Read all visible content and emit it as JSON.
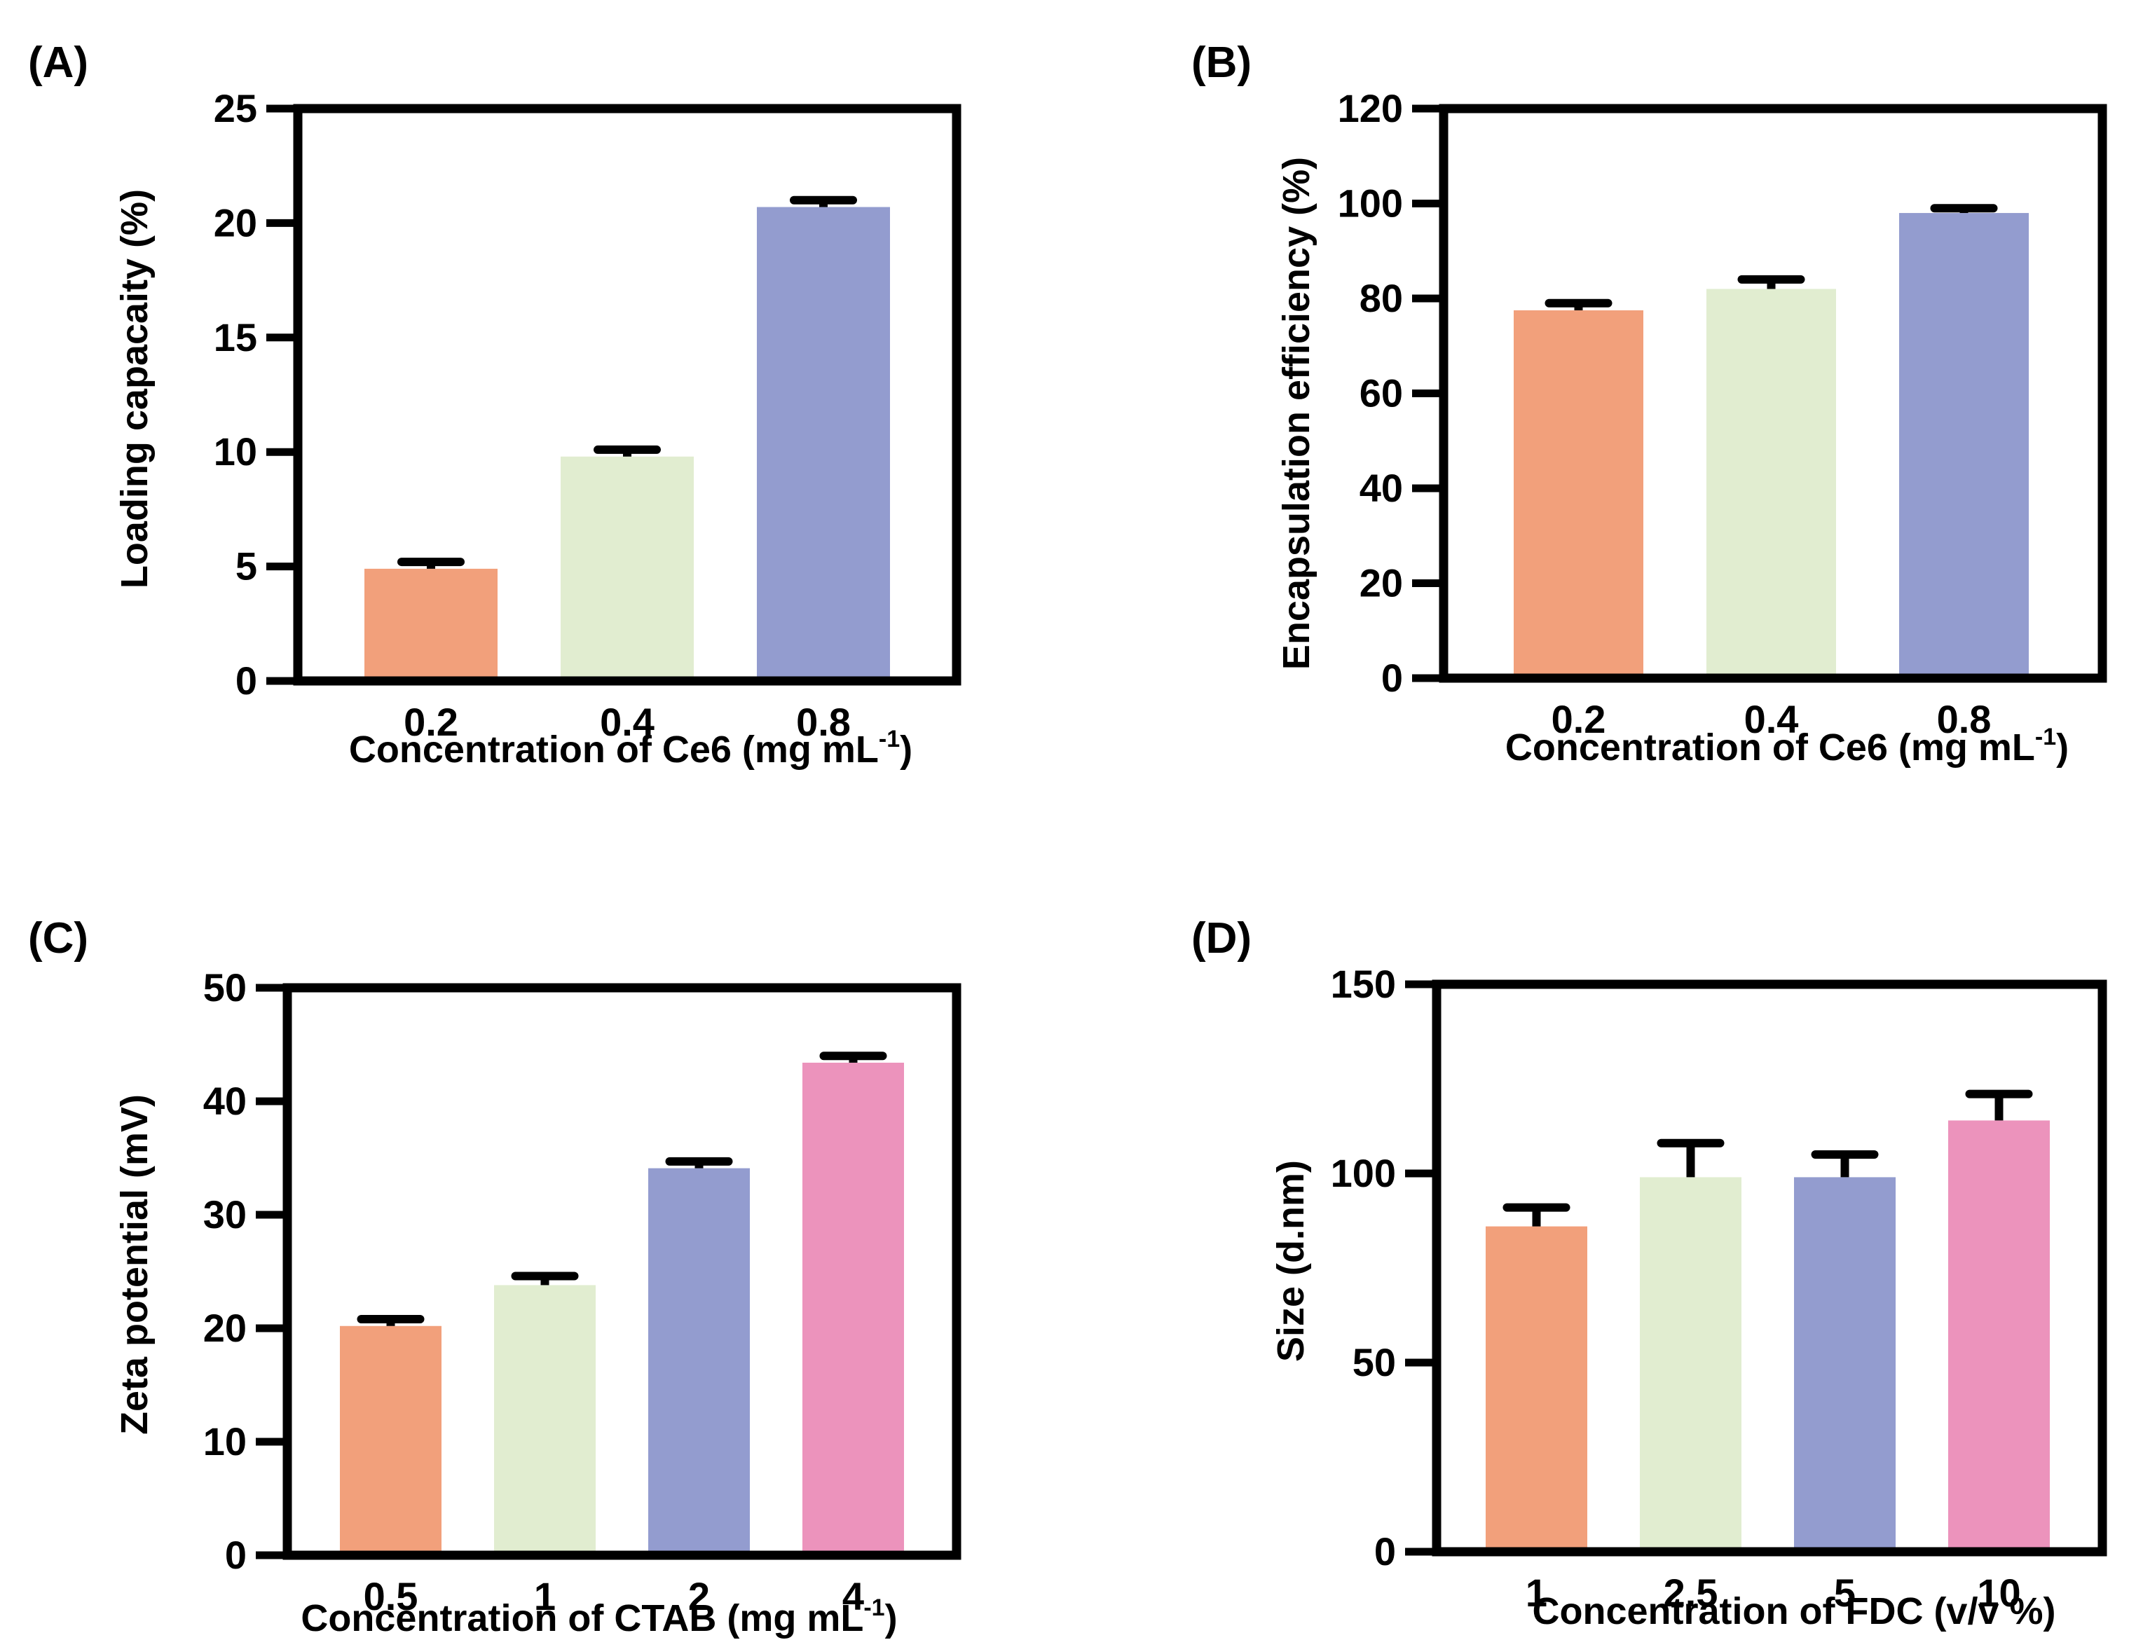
{
  "colors": {
    "orange": "#F2A07B",
    "green": "#E1EDD0",
    "blue": "#939CCF",
    "pink": "#EC93BC",
    "axis": "#000000"
  },
  "chart_data": [
    {
      "panel": "(A)",
      "type": "bar",
      "categories": [
        "0.2",
        "0.4",
        "0.8"
      ],
      "values": [
        4.9,
        9.8,
        20.7
      ],
      "errors": [
        0.3,
        0.3,
        0.3
      ],
      "ylim": [
        0,
        25
      ],
      "yticks": [
        "0",
        "5",
        "10",
        "15",
        "20",
        "25"
      ],
      "ylabel": "Loading capacaity (%)",
      "xlabel_main": "Concentration of Ce6 (mg mL",
      "xlabel_sup": "-1",
      "xlabel_end": ")",
      "bar_colors": [
        "#F2A07B",
        "#E1EDD0",
        "#939CCF"
      ]
    },
    {
      "panel": "(B)",
      "type": "bar",
      "categories": [
        "0.2",
        "0.4",
        "0.8"
      ],
      "values": [
        77.5,
        82,
        98
      ],
      "errors": [
        1.5,
        2,
        1
      ],
      "ylim": [
        0,
        120
      ],
      "yticks": [
        "0",
        "20",
        "40",
        "60",
        "80",
        "100",
        "120"
      ],
      "ylabel": "Encapsulation efficiency (%)",
      "xlabel_main": "Concentration of Ce6 (mg mL",
      "xlabel_sup": "-1",
      "xlabel_end": ")",
      "bar_colors": [
        "#F2A07B",
        "#E1EDD0",
        "#939CCF"
      ]
    },
    {
      "panel": "(C)",
      "type": "bar",
      "categories": [
        "0.5",
        "1",
        "2",
        "4"
      ],
      "values": [
        20.2,
        23.8,
        34.1,
        43.4
      ],
      "errors": [
        0.6,
        0.8,
        0.6,
        0.6
      ],
      "ylim": [
        0,
        50
      ],
      "yticks": [
        "0",
        "10",
        "20",
        "30",
        "40",
        "50"
      ],
      "ylabel": "Zeta potential (mV)",
      "xlabel_main": "Concentration of CTAB (mg mL",
      "xlabel_sup": "-1",
      "xlabel_end": ")",
      "bar_colors": [
        "#F2A07B",
        "#E1EDD0",
        "#939CCF",
        "#EC93BC"
      ]
    },
    {
      "panel": "(D)",
      "type": "bar",
      "categories": [
        "1",
        "2.5",
        "5",
        "10"
      ],
      "values": [
        86,
        99,
        99,
        114
      ],
      "errors": [
        5,
        9,
        6,
        7
      ],
      "ylim": [
        0,
        150
      ],
      "yticks": [
        "0",
        "50",
        "100",
        "150"
      ],
      "ylabel": "Size (d.nm)",
      "xlabel_main": "Concentration of FDC (v/v %)",
      "xlabel_sup": "",
      "xlabel_end": "",
      "bar_colors": [
        "#F2A07B",
        "#E1EDD0",
        "#939CCF",
        "#EC93BC"
      ]
    }
  ]
}
